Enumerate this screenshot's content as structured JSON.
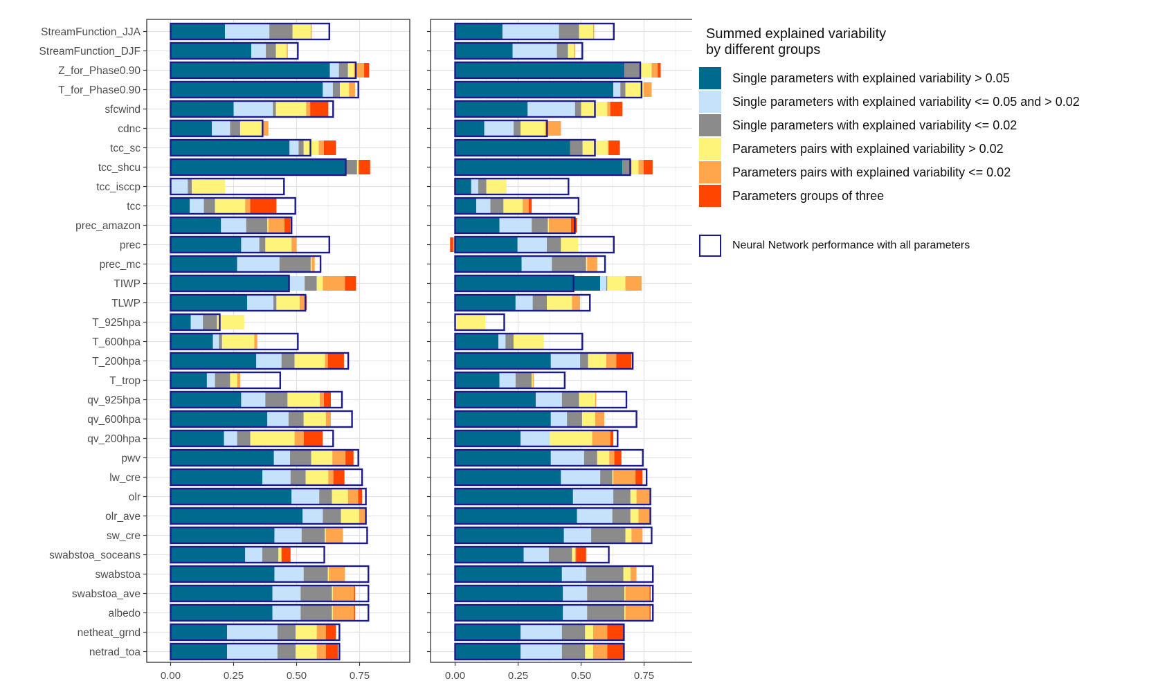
{
  "chart_data": {
    "type": "bar",
    "orientation": "horizontal",
    "stacked": true,
    "grid": true,
    "legend_position": "right",
    "legend_title": "Summed explained variability\nby different groups",
    "categories": [
      "StreamFunction_JJA",
      "StreamFunction_DJF",
      "Z_for_Phase0.90",
      "T_for_Phase0.90",
      "sfcwind",
      "cdnc",
      "tcc_sc",
      "tcc_shcu",
      "tcc_isccp",
      "tcc",
      "prec_amazon",
      "prec",
      "prec_mc",
      "TIWP",
      "TLWP",
      "T_925hpa",
      "T_600hpa",
      "T_200hpa",
      "T_trop",
      "qv_925hpa",
      "qv_600hpa",
      "qv_200hpa",
      "pwv",
      "lw_cre",
      "olr",
      "olr_ave",
      "sw_cre",
      "swabstoa_soceans",
      "swabstoa",
      "swabstoa_ave",
      "albedo",
      "netheat_grnd",
      "netrad_toa"
    ],
    "xlim": [
      -0.1,
      0.95
    ],
    "x_ticks": [
      "0.00",
      "0.25",
      "0.50",
      "0.75"
    ],
    "series_names": [
      "Single parameters with explained variability > 0.05",
      "Single parameters with explained variability <= 0.05 and > 0.02",
      "Single parameters with explained variability <= 0.02",
      "Parameters pairs with explained variability > 0.02",
      "Parameters pairs with explained variability <= 0.02",
      "Parameters groups of three"
    ],
    "series_colors": [
      "#006a8e",
      "#c6e2fb",
      "#8b8b8b",
      "#fff47a",
      "#ffa64d",
      "#ff4500"
    ],
    "nn_label": "Neural Network performance with all parameters",
    "nn_color": "#1a1a8c",
    "panels": [
      {
        "stacks": [
          [
            0.216,
            0.176,
            0.092,
            0.072,
            0.004,
            0
          ],
          [
            0.32,
            0.058,
            0.04,
            0.043,
            0.004,
            0
          ],
          [
            0.632,
            0.036,
            0.036,
            0.024,
            0.04,
            0.02
          ],
          [
            0.604,
            0.04,
            0.028,
            0.036,
            0.024,
            0
          ],
          [
            0.25,
            0.156,
            0.012,
            0.12,
            0.016,
            0.072
          ],
          [
            0.164,
            0.072,
            0.04,
            0.092,
            0.02,
            0
          ],
          [
            0.472,
            0.036,
            0.02,
            0.06,
            0.02,
            0.048
          ],
          [
            0.692,
            0,
            0.048,
            0.004,
            0.004,
            0.044
          ],
          [
            0,
            0.068,
            0.016,
            0.132,
            0,
            0
          ],
          [
            0.076,
            0.056,
            0.044,
            0.12,
            0.02,
            0.104
          ],
          [
            0.2,
            0.1,
            0.084,
            0.004,
            0.064,
            0.024
          ],
          [
            0.28,
            0.072,
            0.024,
            0.104,
            0.02,
            0
          ],
          [
            0.264,
            0.168,
            0.124,
            0.004,
            0.012,
            0
          ],
          [
            0.468,
            0.064,
            0.048,
            0.024,
            0.088,
            0.044
          ],
          [
            0.304,
            0.104,
            0.012,
            0.092,
            0.024,
            0.004
          ],
          [
            0.08,
            0.048,
            0.056,
            0.108,
            0,
            0
          ],
          [
            0.168,
            0.024,
            0.012,
            0.128,
            0.012,
            0
          ],
          [
            0.34,
            0.1,
            0.052,
            0.12,
            0.012,
            0.064
          ],
          [
            0.144,
            0.032,
            0.06,
            0.028,
            0.012,
            0
          ],
          [
            0.28,
            0.096,
            0.088,
            0.128,
            0.016,
            0.028
          ],
          [
            0.384,
            0.084,
            0.06,
            0.088,
            0.02,
            0
          ],
          [
            0.212,
            0.052,
            0.052,
            0.176,
            0.036,
            0.076
          ],
          [
            0.41,
            0.064,
            0.084,
            0.084,
            0.052,
            0.032
          ],
          [
            0.364,
            0.112,
            0.06,
            0.09,
            0.02,
            0.044
          ],
          [
            0.48,
            0.11,
            0.05,
            0.064,
            0.04,
            0.016
          ],
          [
            0.524,
            0.08,
            0.072,
            0.072,
            0.024,
            0
          ],
          [
            0.412,
            0.108,
            0.092,
            0.004,
            0.068,
            0
          ],
          [
            0.296,
            0.068,
            0.064,
            0.012,
            0,
            0.036
          ],
          [
            0.412,
            0.116,
            0.096,
            0.004,
            0.064,
            0
          ],
          [
            0.404,
            0.112,
            0.124,
            0.004,
            0.084,
            0.004
          ],
          [
            0.404,
            0.112,
            0.124,
            0.004,
            0.084,
            0.004
          ],
          [
            0.224,
            0.2,
            0.072,
            0.084,
            0.036,
            0.04
          ],
          [
            0.224,
            0.2,
            0.072,
            0.084,
            0.036,
            0.048
          ]
        ],
        "neg": [
          [],
          [],
          [],
          [],
          [
            [
              0.004,
              "#ffa64d"
            ]
          ],
          [],
          [],
          [],
          [],
          [],
          [],
          [
            [
              0.004,
              "#ff4500"
            ]
          ],
          [],
          [],
          [],
          [],
          [],
          [],
          [],
          [],
          [],
          [],
          [],
          [],
          [],
          [],
          [],
          [],
          [],
          [],
          [],
          [],
          []
        ],
        "nn": [
          0.63,
          0.505,
          0.735,
          0.745,
          0.645,
          0.365,
          0.555,
          0.695,
          0.45,
          0.495,
          0.48,
          0.63,
          0.595,
          0.47,
          0.535,
          0.195,
          0.505,
          0.705,
          0.435,
          0.68,
          0.72,
          0.645,
          0.745,
          0.76,
          0.775,
          0.775,
          0.78,
          0.61,
          0.785,
          0.785,
          0.785,
          0.67,
          0.67
        ]
      },
      {
        "stacks": [
          [
            0.188,
            0.224,
            0.08,
            0.056,
            0.004,
            0
          ],
          [
            0.228,
            0.176,
            0.044,
            0.024,
            0.004,
            0
          ],
          [
            0.672,
            0,
            0.06,
            0.048,
            0.024,
            0.012
          ],
          [
            0.628,
            0.028,
            0.02,
            0.072,
            0.032,
            0
          ],
          [
            0.288,
            0.188,
            0.024,
            0.104,
            0.012,
            0.048
          ],
          [
            0.116,
            0.116,
            0.028,
            0.096,
            0.064,
            0
          ],
          [
            0.456,
            0,
            0.05,
            0.1,
            0.004,
            0.044
          ],
          [
            0.664,
            0,
            0.036,
            0.028,
            0.02,
            0.036
          ],
          [
            0.064,
            0.028,
            0.032,
            0.08,
            0,
            0
          ],
          [
            0.084,
            0.056,
            0.052,
            0.076,
            0.024,
            0.012
          ],
          [
            0.176,
            0.128,
            0.064,
            0.004,
            0.088,
            0.024
          ],
          [
            0.248,
            0.116,
            0.056,
            0.068,
            0,
            0
          ],
          [
            0.264,
            0.12,
            0.136,
            0.004,
            0.04,
            0
          ],
          [
            0.576,
            0.024,
            0.004,
            0.072,
            0.064,
            0
          ],
          [
            0.24,
            0.068,
            0.056,
            0.1,
            0.032,
            0
          ],
          [
            0,
            0,
            0,
            0.12,
            0,
            0
          ],
          [
            0.172,
            0.028,
            0.032,
            0.12,
            0,
            0
          ],
          [
            0.38,
            0.116,
            0.032,
            0.072,
            0.04,
            0.06
          ],
          [
            0.176,
            0.064,
            0.064,
            0.004,
            0.004,
            0
          ],
          [
            0.32,
            0.104,
            0.068,
            0.064,
            0.004,
            0
          ],
          [
            0.38,
            0.064,
            0.06,
            0.052,
            0.036,
            0
          ],
          [
            0.26,
            0.116,
            0,
            0.168,
            0.072,
            0.012
          ],
          [
            0.38,
            0.132,
            0.052,
            0.048,
            0.02,
            0.028
          ],
          [
            0.42,
            0.156,
            0.048,
            0.004,
            0.088,
            0.028
          ],
          [
            0.468,
            0.16,
            0.068,
            0.024,
            0.052,
            0.004
          ],
          [
            0.484,
            0.14,
            0.072,
            0.032,
            0.044,
            0.004
          ],
          [
            0.432,
            0.108,
            0.136,
            0.024,
            0.044,
            0
          ],
          [
            0.272,
            0.1,
            0.092,
            0.012,
            0.004,
            0.04
          ],
          [
            0.424,
            0.096,
            0.148,
            0.028,
            0.024,
            0
          ],
          [
            0.428,
            0.096,
            0.148,
            0.004,
            0.096,
            0.004
          ],
          [
            0.428,
            0.096,
            0.148,
            0.004,
            0.096,
            0.004
          ],
          [
            0.26,
            0.164,
            0.092,
            0.032,
            0.056,
            0.064
          ],
          [
            0.26,
            0.164,
            0.092,
            0.032,
            0.056,
            0.064
          ]
        ],
        "neg": [
          [],
          [],
          [],
          [],
          [],
          [],
          [],
          [],
          [
            [
              0.004,
              "#ffa64d"
            ]
          ],
          [],
          [],
          [
            [
              0.008,
              "#ffa64d"
            ],
            [
              0.012,
              "#ff4500"
            ]
          ],
          [],
          [],
          [],
          [],
          [],
          [],
          [],
          [
            [
              0.004,
              "#ff4500"
            ]
          ],
          [],
          [],
          [],
          [],
          [],
          [],
          [],
          [],
          [],
          [],
          [],
          [],
          []
        ],
        "nn": [
          0.63,
          0.505,
          0.735,
          0.74,
          0.555,
          0.365,
          0.555,
          0.695,
          0.45,
          0.49,
          0.475,
          0.63,
          0.595,
          0.47,
          0.535,
          0.195,
          0.505,
          0.705,
          0.435,
          0.68,
          0.72,
          0.645,
          0.745,
          0.76,
          0.775,
          0.775,
          0.78,
          0.61,
          0.785,
          0.785,
          0.785,
          0.67,
          0.67
        ]
      }
    ]
  }
}
